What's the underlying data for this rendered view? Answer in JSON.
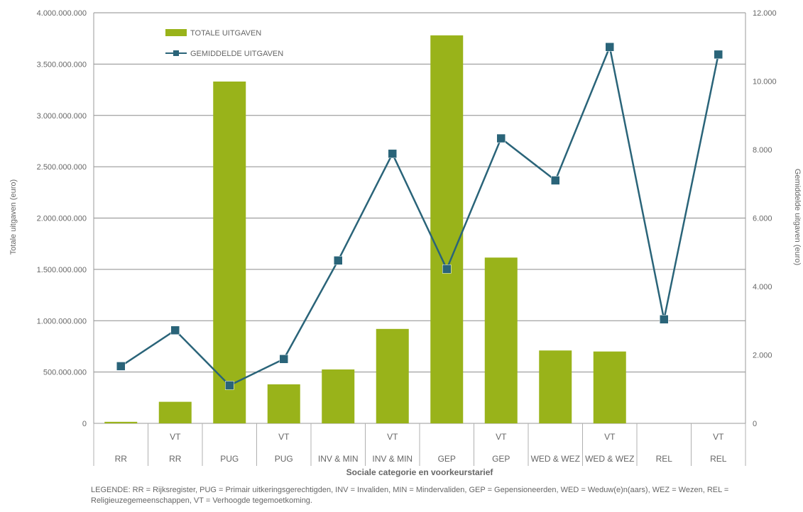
{
  "chart_data": {
    "type": "bar",
    "categories": [
      {
        "top": "",
        "bottom": "RR"
      },
      {
        "top": "VT",
        "bottom": "RR"
      },
      {
        "top": "",
        "bottom": "PUG"
      },
      {
        "top": "VT",
        "bottom": "PUG"
      },
      {
        "top": "",
        "bottom": "INV & MIN"
      },
      {
        "top": "VT",
        "bottom": "INV & MIN"
      },
      {
        "top": "",
        "bottom": "GEP"
      },
      {
        "top": "VT",
        "bottom": "GEP"
      },
      {
        "top": "",
        "bottom": "WED & WEZ"
      },
      {
        "top": "VT",
        "bottom": "WED & WEZ"
      },
      {
        "top": "",
        "bottom": "REL"
      },
      {
        "top": "VT",
        "bottom": "REL"
      }
    ],
    "series": [
      {
        "name": "TOTALE UITGAVEN",
        "kind": "bar",
        "axis": "left",
        "color": "#99b31a",
        "values": [
          15000000,
          210000000,
          3330000000,
          380000000,
          525000000,
          920000000,
          3780000000,
          1615000000,
          710000000,
          700000000,
          0,
          0
        ]
      },
      {
        "name": "GEMIDDELDE UITGAVEN",
        "kind": "line",
        "axis": "right",
        "color": "#2a6479",
        "values": [
          1670,
          2720,
          1110,
          1880,
          4760,
          7880,
          4510,
          8330,
          7100,
          11000,
          3040,
          10780
        ]
      }
    ],
    "ylabel_left": "Totale uitgaven (euro)",
    "ylabel_right": "Gemiddelde uitgaven (euro)",
    "xlabel": "Sociale categorie en voorkeurstarief",
    "ylim_left": [
      0,
      4000000000
    ],
    "ylim_right": [
      0,
      12000
    ],
    "yticks_left": [
      "0",
      "500.000.000",
      "1.000.000.000",
      "1.500.000.000",
      "2.000.000.000",
      "2.500.000.000",
      "3.000.000.000",
      "3.500.000.000",
      "4.000.000.000"
    ],
    "yticks_right": [
      "0",
      "2.000",
      "4.000",
      "6.000",
      "8.000",
      "10.000",
      "12.000"
    ],
    "grid": true,
    "legend_position": "top-left"
  },
  "legend_note": "LEGENDE: RR = Rijksregister, PUG = Primair uitkeringsgerechtigden, INV = Invaliden, MIN = Mindervaliden, GEP = Gepensioneerden, WED = Weduw(e)n(aars), WEZ = Wezen, REL = Religieuzegemeenschappen, VT = Verhoogde tegemoetkoming."
}
